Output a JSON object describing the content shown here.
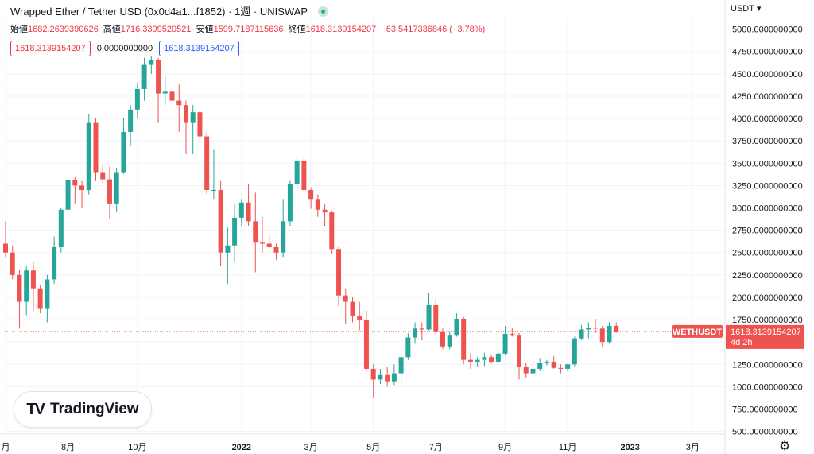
{
  "header": {
    "title": "Wrapped Ether / Tether USD (0x0d4a1...f1852) · 1週 · UNISWAP",
    "currency_label": "USDT",
    "currency_chevron": "▾"
  },
  "ohlc": {
    "open_label": "始値",
    "open_value": "1682.2639390626",
    "high_label": "高値",
    "high_value": "1716.3309520521",
    "low_label": "安値",
    "low_value": "1599.7187115636",
    "close_label": "終値",
    "close_value": "1618.3139154207",
    "change_value": "−63.5417336846 (−3.78%)"
  },
  "indicators": {
    "value_a": "1618.3139154207",
    "value_b": "0.0000000000",
    "value_c": "1618.3139154207"
  },
  "watermark": {
    "logo": "TV",
    "text": "TradingView"
  },
  "price_tag": {
    "symbol": "WETHUSDT",
    "price": "1618.3139154207",
    "countdown": "4d 2h"
  },
  "colors": {
    "up": "#26a69a",
    "down": "#ef5350",
    "grid": "#f0f3fa",
    "tag": "#ef5350"
  },
  "icons": {
    "settings": "gear-icon",
    "status": "status-dot-icon"
  },
  "chart_data": {
    "type": "candlestick",
    "ylim": [
      470,
      5130
    ],
    "yticks": [
      {
        "value": 500,
        "label": "500.0000000000"
      },
      {
        "value": 750,
        "label": "750.0000000000"
      },
      {
        "value": 1000,
        "label": "1000.0000000000"
      },
      {
        "value": 1250,
        "label": "1250.0000000000"
      },
      {
        "value": 1500,
        "label": "1500.0000000000"
      },
      {
        "value": 1750,
        "label": "1750.0000000000"
      },
      {
        "value": 2000,
        "label": "2000.0000000000"
      },
      {
        "value": 2250,
        "label": "2250.0000000000"
      },
      {
        "value": 2500,
        "label": "2500.0000000000"
      },
      {
        "value": 2750,
        "label": "2750.0000000000"
      },
      {
        "value": 3000,
        "label": "3000.0000000000"
      },
      {
        "value": 3250,
        "label": "3250.0000000000"
      },
      {
        "value": 3500,
        "label": "3500.0000000000"
      },
      {
        "value": 3750,
        "label": "3750.0000000000"
      },
      {
        "value": 4000,
        "label": "4000.0000000000"
      },
      {
        "value": 4250,
        "label": "4250.0000000000"
      },
      {
        "value": 4500,
        "label": "4500.0000000000"
      },
      {
        "value": 4750,
        "label": "4750.0000000000"
      },
      {
        "value": 5000,
        "label": "5000.0000000000"
      }
    ],
    "xticks": [
      {
        "index": 0,
        "label": "月"
      },
      {
        "index": 9,
        "label": "8月"
      },
      {
        "index": 19,
        "label": "10月"
      },
      {
        "index": 34,
        "label": "2022"
      },
      {
        "index": 44,
        "label": "3月"
      },
      {
        "index": 53,
        "label": "5月"
      },
      {
        "index": 62,
        "label": "7月"
      },
      {
        "index": 72,
        "label": "9月"
      },
      {
        "index": 81,
        "label": "11月"
      },
      {
        "index": 90,
        "label": "2023"
      },
      {
        "index": 99,
        "label": "3月"
      }
    ],
    "last_price": 1618.31,
    "candles": [
      {
        "o": 2600,
        "h": 2850,
        "l": 2450,
        "c": 2500
      },
      {
        "o": 2500,
        "h": 2580,
        "l": 2200,
        "c": 2250
      },
      {
        "o": 2250,
        "h": 2310,
        "l": 1650,
        "c": 1950
      },
      {
        "o": 1950,
        "h": 2350,
        "l": 1800,
        "c": 2300
      },
      {
        "o": 2300,
        "h": 2400,
        "l": 1850,
        "c": 2100
      },
      {
        "o": 2100,
        "h": 2140,
        "l": 1820,
        "c": 1870
      },
      {
        "o": 1870,
        "h": 2250,
        "l": 1720,
        "c": 2200
      },
      {
        "o": 2200,
        "h": 2680,
        "l": 2150,
        "c": 2560
      },
      {
        "o": 2560,
        "h": 3000,
        "l": 2500,
        "c": 2980
      },
      {
        "o": 2980,
        "h": 3320,
        "l": 2900,
        "c": 3310
      },
      {
        "o": 3310,
        "h": 3350,
        "l": 3050,
        "c": 3250
      },
      {
        "o": 3250,
        "h": 3300,
        "l": 3000,
        "c": 3200
      },
      {
        "o": 3200,
        "h": 4050,
        "l": 3150,
        "c": 3950
      },
      {
        "o": 3950,
        "h": 4000,
        "l": 3300,
        "c": 3400
      },
      {
        "o": 3400,
        "h": 3480,
        "l": 3280,
        "c": 3320
      },
      {
        "o": 3320,
        "h": 3460,
        "l": 2880,
        "c": 3050
      },
      {
        "o": 3050,
        "h": 3450,
        "l": 2950,
        "c": 3400
      },
      {
        "o": 3400,
        "h": 4000,
        "l": 3380,
        "c": 3850
      },
      {
        "o": 3850,
        "h": 4150,
        "l": 3700,
        "c": 4100
      },
      {
        "o": 4100,
        "h": 4400,
        "l": 4000,
        "c": 4330
      },
      {
        "o": 4330,
        "h": 4680,
        "l": 4200,
        "c": 4600
      },
      {
        "o": 4600,
        "h": 4700,
        "l": 4500,
        "c": 4650
      },
      {
        "o": 4650,
        "h": 4680,
        "l": 3950,
        "c": 4280
      },
      {
        "o": 4280,
        "h": 4480,
        "l": 4150,
        "c": 4300
      },
      {
        "o": 4300,
        "h": 4700,
        "l": 3560,
        "c": 4200
      },
      {
        "o": 4200,
        "h": 4380,
        "l": 3850,
        "c": 4150
      },
      {
        "o": 4150,
        "h": 4200,
        "l": 3600,
        "c": 3950
      },
      {
        "o": 3950,
        "h": 4150,
        "l": 3600,
        "c": 4070
      },
      {
        "o": 4070,
        "h": 4100,
        "l": 3700,
        "c": 3800
      },
      {
        "o": 3800,
        "h": 3850,
        "l": 3150,
        "c": 3200
      },
      {
        "o": 3200,
        "h": 3650,
        "l": 3100,
        "c": 3200
      },
      {
        "o": 3200,
        "h": 3300,
        "l": 2350,
        "c": 2500
      },
      {
        "o": 2500,
        "h": 2780,
        "l": 2150,
        "c": 2580
      },
      {
        "o": 2580,
        "h": 3050,
        "l": 2400,
        "c": 2890
      },
      {
        "o": 2890,
        "h": 3100,
        "l": 2800,
        "c": 3060
      },
      {
        "o": 3060,
        "h": 3270,
        "l": 2800,
        "c": 2850
      },
      {
        "o": 2850,
        "h": 3170,
        "l": 2280,
        "c": 2620
      },
      {
        "o": 2620,
        "h": 2900,
        "l": 2500,
        "c": 2600
      },
      {
        "o": 2600,
        "h": 2700,
        "l": 2550,
        "c": 2560
      },
      {
        "o": 2560,
        "h": 2600,
        "l": 2420,
        "c": 2500
      },
      {
        "o": 2500,
        "h": 3100,
        "l": 2450,
        "c": 2850
      },
      {
        "o": 2850,
        "h": 3300,
        "l": 2800,
        "c": 3270
      },
      {
        "o": 3270,
        "h": 3580,
        "l": 3200,
        "c": 3530
      },
      {
        "o": 3530,
        "h": 3560,
        "l": 3160,
        "c": 3200
      },
      {
        "o": 3200,
        "h": 3230,
        "l": 2990,
        "c": 3100
      },
      {
        "o": 3100,
        "h": 3150,
        "l": 2900,
        "c": 2980
      },
      {
        "o": 2980,
        "h": 3050,
        "l": 2800,
        "c": 2950
      },
      {
        "o": 2950,
        "h": 2960,
        "l": 2480,
        "c": 2540
      },
      {
        "o": 2540,
        "h": 2560,
        "l": 1900,
        "c": 2020
      },
      {
        "o": 2020,
        "h": 2100,
        "l": 1700,
        "c": 1950
      },
      {
        "o": 1950,
        "h": 2000,
        "l": 1720,
        "c": 1790
      },
      {
        "o": 1790,
        "h": 1950,
        "l": 1630,
        "c": 1750
      },
      {
        "o": 1750,
        "h": 1850,
        "l": 1180,
        "c": 1200
      },
      {
        "o": 1200,
        "h": 1250,
        "l": 880,
        "c": 1080
      },
      {
        "o": 1080,
        "h": 1200,
        "l": 1030,
        "c": 1130
      },
      {
        "o": 1130,
        "h": 1220,
        "l": 1000,
        "c": 1060
      },
      {
        "o": 1060,
        "h": 1250,
        "l": 1020,
        "c": 1150
      },
      {
        "o": 1150,
        "h": 1360,
        "l": 1010,
        "c": 1330
      },
      {
        "o": 1330,
        "h": 1600,
        "l": 1300,
        "c": 1550
      },
      {
        "o": 1550,
        "h": 1720,
        "l": 1480,
        "c": 1650
      },
      {
        "o": 1650,
        "h": 1720,
        "l": 1520,
        "c": 1640
      },
      {
        "o": 1640,
        "h": 2050,
        "l": 1630,
        "c": 1920
      },
      {
        "o": 1920,
        "h": 1980,
        "l": 1580,
        "c": 1620
      },
      {
        "o": 1620,
        "h": 1650,
        "l": 1420,
        "c": 1450
      },
      {
        "o": 1450,
        "h": 1620,
        "l": 1420,
        "c": 1580
      },
      {
        "o": 1580,
        "h": 1820,
        "l": 1560,
        "c": 1760
      },
      {
        "o": 1760,
        "h": 1780,
        "l": 1250,
        "c": 1300
      },
      {
        "o": 1300,
        "h": 1370,
        "l": 1200,
        "c": 1280
      },
      {
        "o": 1280,
        "h": 1330,
        "l": 1220,
        "c": 1300
      },
      {
        "o": 1300,
        "h": 1380,
        "l": 1230,
        "c": 1330
      },
      {
        "o": 1330,
        "h": 1360,
        "l": 1260,
        "c": 1280
      },
      {
        "o": 1280,
        "h": 1400,
        "l": 1260,
        "c": 1370
      },
      {
        "o": 1370,
        "h": 1680,
        "l": 1350,
        "c": 1590
      },
      {
        "o": 1590,
        "h": 1660,
        "l": 1560,
        "c": 1580
      },
      {
        "o": 1580,
        "h": 1600,
        "l": 1080,
        "c": 1220
      },
      {
        "o": 1220,
        "h": 1270,
        "l": 1100,
        "c": 1150
      },
      {
        "o": 1150,
        "h": 1230,
        "l": 1100,
        "c": 1200
      },
      {
        "o": 1200,
        "h": 1320,
        "l": 1180,
        "c": 1270
      },
      {
        "o": 1270,
        "h": 1300,
        "l": 1240,
        "c": 1280
      },
      {
        "o": 1280,
        "h": 1340,
        "l": 1200,
        "c": 1210
      },
      {
        "o": 1210,
        "h": 1250,
        "l": 1150,
        "c": 1200
      },
      {
        "o": 1200,
        "h": 1260,
        "l": 1180,
        "c": 1250
      },
      {
        "o": 1250,
        "h": 1560,
        "l": 1230,
        "c": 1540
      },
      {
        "o": 1540,
        "h": 1690,
        "l": 1520,
        "c": 1640
      },
      {
        "o": 1640,
        "h": 1720,
        "l": 1540,
        "c": 1660
      },
      {
        "o": 1660,
        "h": 1760,
        "l": 1600,
        "c": 1650
      },
      {
        "o": 1650,
        "h": 1680,
        "l": 1450,
        "c": 1500
      },
      {
        "o": 1500,
        "h": 1720,
        "l": 1480,
        "c": 1680
      },
      {
        "o": 1680,
        "h": 1720,
        "l": 1600,
        "c": 1618
      }
    ]
  }
}
